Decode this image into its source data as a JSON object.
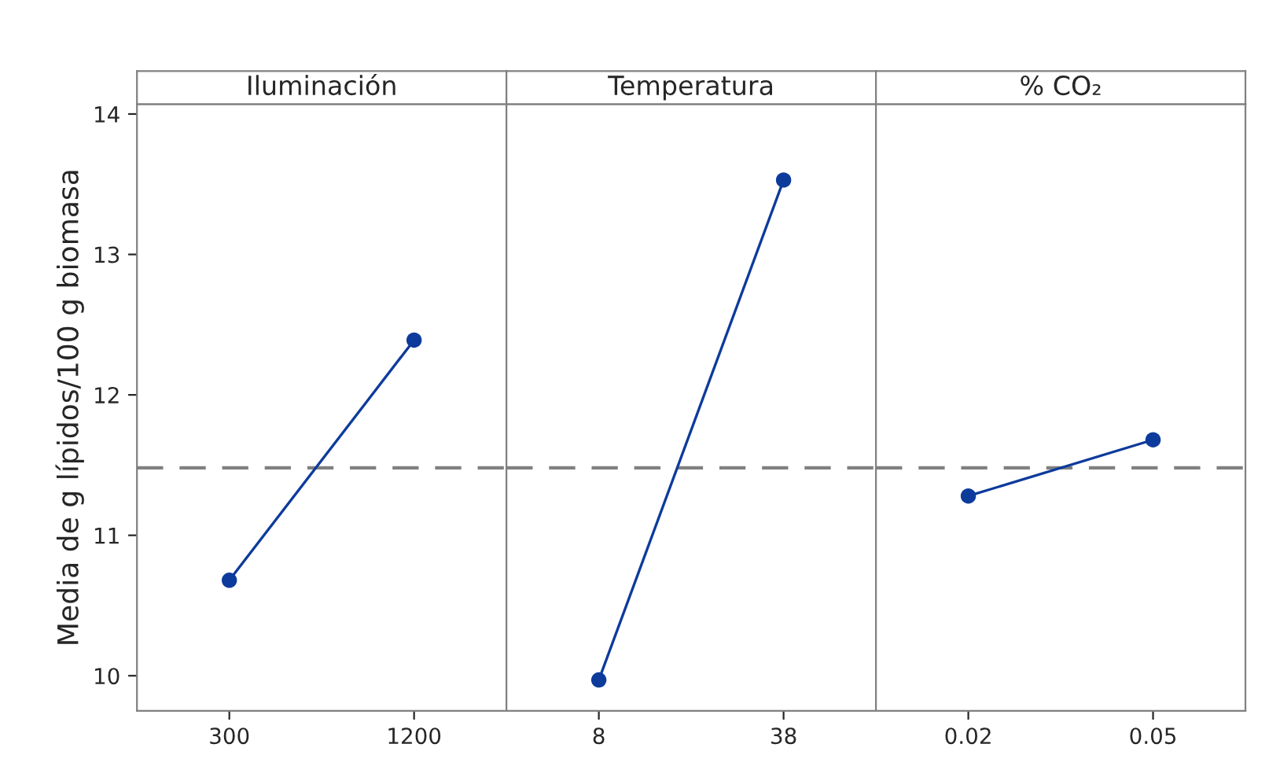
{
  "chart_data": [
    {
      "type": "line",
      "title": "Iluminación",
      "ylabel": "Media de g lípidos/100 g biomasa",
      "categories": [
        "300",
        "1200"
      ],
      "series": [
        {
          "color": "#0d3b9c",
          "values": [
            10.68,
            12.39
          ]
        }
      ],
      "ylim": [
        9.75,
        14.07
      ],
      "yticks": [
        10,
        11,
        12,
        13,
        14
      ],
      "marker": "circle",
      "line_style": "solid",
      "grid": false,
      "legend": false,
      "ref_lines": [
        {
          "axis": "y",
          "value": 11.48,
          "color": "#808080",
          "line_style": "dashed"
        }
      ]
    },
    {
      "type": "line",
      "title": "Temperatura",
      "categories": [
        "8",
        "38"
      ],
      "series": [
        {
          "color": "#0d3b9c",
          "values": [
            9.97,
            13.53
          ]
        }
      ],
      "ylim": [
        9.75,
        14.07
      ],
      "tick_labels": "x",
      "marker": "circle",
      "line_style": "solid",
      "grid": false,
      "legend": false,
      "ref_lines": [
        {
          "axis": "y",
          "value": 11.48,
          "color": "#808080",
          "line_style": "dashed"
        }
      ]
    },
    {
      "type": "line",
      "title": "% CO₂",
      "categories": [
        "0.02",
        "0.05"
      ],
      "series": [
        {
          "color": "#0d3b9c",
          "values": [
            11.28,
            11.68
          ]
        }
      ],
      "ylim": [
        9.75,
        14.07
      ],
      "tick_labels": "x",
      "marker": "circle",
      "line_style": "solid",
      "grid": false,
      "legend": false,
      "ref_lines": [
        {
          "axis": "y",
          "value": 11.48,
          "color": "#808080",
          "line_style": "dashed"
        }
      ]
    }
  ]
}
